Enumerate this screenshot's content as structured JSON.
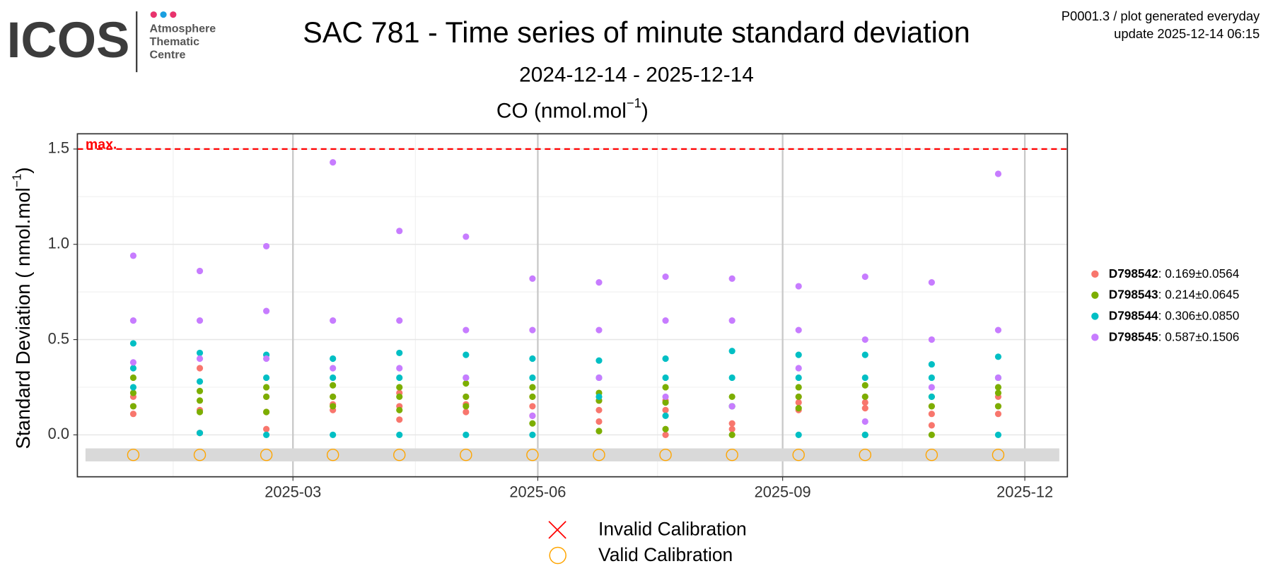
{
  "header": {
    "logo": "ICOS",
    "logo_lines": [
      "Atmosphere",
      "Thematic",
      "Centre"
    ],
    "info": [
      "P0001.3 / plot generated everyday",
      "update  2025-12-14 06:15"
    ]
  },
  "chart_data": {
    "type": "scatter",
    "title": "SAC 781 - Time series of minute standard deviation",
    "subtitle": "2024-12-14 - 2025-12-14",
    "panel_title": {
      "text": "CO (nmol.mol",
      "sup": "−1",
      "close": ")"
    },
    "y_label": {
      "text": "Standard Deviation ( nmol.mol",
      "sup": "−1",
      "close": ")"
    },
    "max_line": {
      "label": "max.",
      "value": 1.5,
      "color": "#ff0000"
    },
    "x": [
      "2024-12-31",
      "2024-12-31",
      "2024-12-31",
      "2025-01-25",
      "2025-01-25",
      "2025-01-25",
      "2025-02-19",
      "2025-02-19",
      "2025-02-19",
      "2025-03-16",
      "2025-03-16",
      "2025-03-16",
      "2025-04-10",
      "2025-04-10",
      "2025-04-10",
      "2025-05-05",
      "2025-05-05",
      "2025-05-05",
      "2025-05-30",
      "2025-05-30",
      "2025-05-30",
      "2025-06-24",
      "2025-06-24",
      "2025-06-24",
      "2025-07-19",
      "2025-07-19",
      "2025-07-19",
      "2025-08-13",
      "2025-08-13",
      "2025-08-13",
      "2025-09-07",
      "2025-09-07",
      "2025-09-07",
      "2025-10-02",
      "2025-10-02",
      "2025-10-02",
      "2025-10-27",
      "2025-10-27",
      "2025-10-27",
      "2025-11-21",
      "2025-11-21",
      "2025-11-21"
    ],
    "series": [
      {
        "name": "D798542",
        "stats": ": 0.169±0.0564",
        "color": "#F8766D",
        "values": [
          0.11,
          0.15,
          0.2,
          0.01,
          0.13,
          0.35,
          0.03,
          0.12,
          0.2,
          0.13,
          0.16,
          0.2,
          0.08,
          0.15,
          0.22,
          0.12,
          0.16,
          0.2,
          0.1,
          0.15,
          0.2,
          0.07,
          0.13,
          0.18,
          0.0,
          0.13,
          0.18,
          0.03,
          0.06,
          0.15,
          0.13,
          0.17,
          0.2,
          0.14,
          0.17,
          0.2,
          0.05,
          0.11,
          0.15,
          0.11,
          0.15,
          0.2
        ]
      },
      {
        "name": "D798543",
        "stats": ": 0.214±0.0645",
        "color": "#7CAE00",
        "values": [
          0.15,
          0.22,
          0.3,
          0.12,
          0.18,
          0.23,
          0.12,
          0.2,
          0.25,
          0.15,
          0.2,
          0.26,
          0.13,
          0.2,
          0.25,
          0.15,
          0.2,
          0.27,
          0.06,
          0.2,
          0.25,
          0.02,
          0.18,
          0.22,
          0.03,
          0.17,
          0.25,
          0.0,
          0.15,
          0.2,
          0.14,
          0.2,
          0.25,
          0.0,
          0.2,
          0.26,
          0.0,
          0.15,
          0.2,
          0.15,
          0.22,
          0.25
        ]
      },
      {
        "name": "D798544",
        "stats": ": 0.306±0.0850",
        "color": "#00BFC4",
        "values": [
          0.25,
          0.35,
          0.48,
          0.01,
          0.28,
          0.43,
          0.0,
          0.3,
          0.42,
          0.0,
          0.3,
          0.4,
          0.0,
          0.3,
          0.43,
          0.0,
          0.3,
          0.42,
          0.0,
          0.3,
          0.4,
          0.2,
          0.3,
          0.39,
          0.1,
          0.3,
          0.4,
          0.15,
          0.3,
          0.44,
          0.0,
          0.3,
          0.42,
          0.0,
          0.3,
          0.42,
          0.2,
          0.3,
          0.37,
          0.0,
          0.3,
          0.41
        ]
      },
      {
        "name": "D798545",
        "stats": ": 0.587±0.1506",
        "color": "#C77CFF",
        "values": [
          0.38,
          0.6,
          0.94,
          0.4,
          0.6,
          0.86,
          0.4,
          0.65,
          0.99,
          0.35,
          0.6,
          1.43,
          0.35,
          0.6,
          1.07,
          0.3,
          0.55,
          1.04,
          0.1,
          0.55,
          0.82,
          0.3,
          0.55,
          0.8,
          0.2,
          0.6,
          0.83,
          0.15,
          0.6,
          0.82,
          0.35,
          0.55,
          0.78,
          0.07,
          0.5,
          0.83,
          0.25,
          0.5,
          0.8,
          0.3,
          0.55,
          1.37
        ]
      }
    ],
    "valid_calibration": {
      "label": "Valid Calibration",
      "color": "#FFA500",
      "x": [
        "2024-12-31",
        "2025-01-25",
        "2025-02-19",
        "2025-03-16",
        "2025-04-10",
        "2025-05-05",
        "2025-05-30",
        "2025-06-24",
        "2025-07-19",
        "2025-08-13",
        "2025-09-07",
        "2025-10-02",
        "2025-10-27",
        "2025-11-21"
      ]
    },
    "invalid_calibration": {
      "label": "Invalid Calibration",
      "color": "#ff0000"
    },
    "xlim": [
      "2024-12-10",
      "2025-12-17"
    ],
    "xticks": [
      {
        "value": "2025-03-01",
        "label": "2025-03"
      },
      {
        "value": "2025-06-01",
        "label": "2025-06"
      },
      {
        "value": "2025-09-01",
        "label": "2025-09"
      },
      {
        "value": "2025-12-01",
        "label": "2025-12"
      }
    ],
    "minor_xticks": [
      "2025-01-15",
      "2025-04-16",
      "2025-07-16",
      "2025-10-16"
    ],
    "ylim": [
      -0.22,
      1.58
    ],
    "yticks": [
      {
        "value": 0,
        "label": "0.0"
      },
      {
        "value": 0.5,
        "label": "0.5"
      },
      {
        "value": 1,
        "label": "1.0"
      },
      {
        "value": 1.5,
        "label": "1.5"
      }
    ],
    "minor_yticks": [
      0.25,
      0.75,
      1.25
    ],
    "grid": true
  }
}
